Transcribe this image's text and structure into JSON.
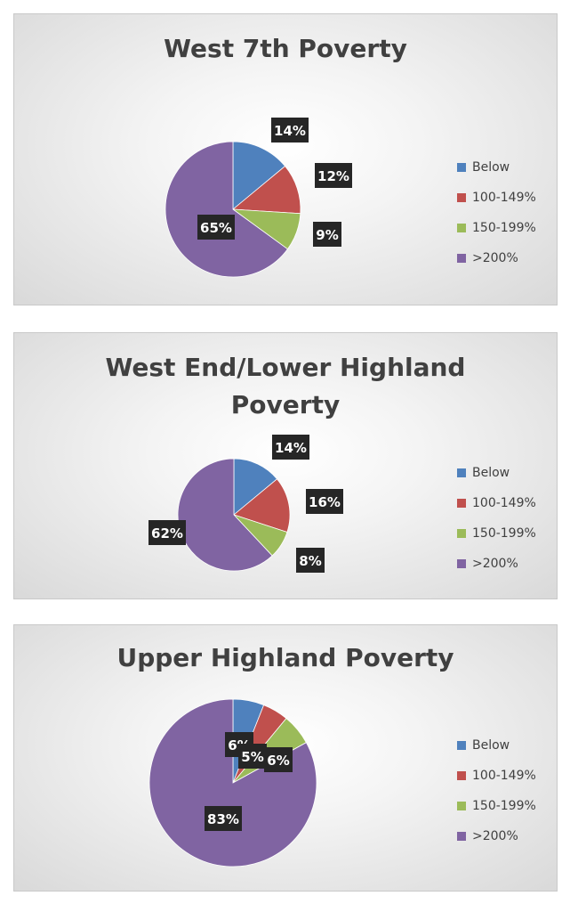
{
  "colors": {
    "below": "#4f81bd",
    "p100_149": "#c0504d",
    "p150_199": "#9bbb59",
    "over200": "#8064a2",
    "label_bg": "#262626",
    "label_text": "#ffffff"
  },
  "chart_data": [
    {
      "type": "pie",
      "title": "West 7th Poverty",
      "categories": [
        "Below",
        "100-149%",
        "150-199%",
        ">200%"
      ],
      "values": [
        14,
        12,
        9,
        65
      ],
      "data_labels": [
        "14%",
        "12%",
        "9%",
        "65%"
      ],
      "legend": "right"
    },
    {
      "type": "pie",
      "title": "West End/Lower Highland Poverty",
      "title_lines": [
        "West End/Lower Highland",
        "Poverty"
      ],
      "categories": [
        "Below",
        "100-149%",
        "150-199%",
        ">200%"
      ],
      "values": [
        14,
        16,
        8,
        62
      ],
      "data_labels": [
        "14%",
        "16%",
        "8%",
        "62%"
      ],
      "legend": "right"
    },
    {
      "type": "pie",
      "title": "Upper Highland Poverty",
      "categories": [
        "Below",
        "100-149%",
        "150-199%",
        ">200%"
      ],
      "values": [
        6,
        5,
        6,
        83
      ],
      "data_labels": [
        "6%",
        "5%",
        "6%",
        "83%"
      ],
      "legend": "right"
    }
  ]
}
